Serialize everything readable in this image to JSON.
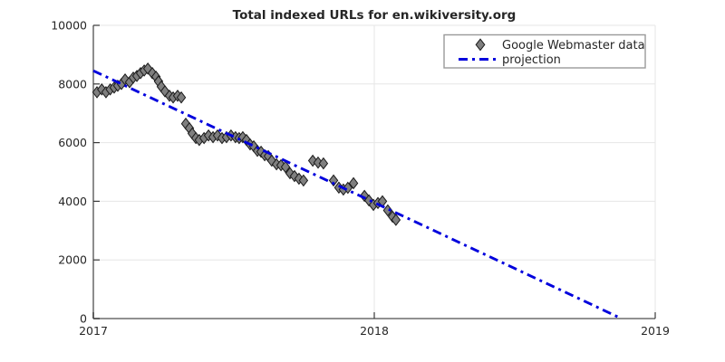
{
  "title": "Total indexed URLs for en.wikiversity.org",
  "legend": {
    "position": "top-right",
    "items": [
      {
        "label": "Google Webmaster data",
        "sample": "diamond-marker"
      },
      {
        "label": "projection",
        "sample": "dash-dot-line"
      }
    ]
  },
  "colors": {
    "marker_fill": "#7f7f7f",
    "marker_stroke": "#1a1a1a",
    "projection_line": "#0000dd",
    "axis": "#808080",
    "tick": "#3a3a3a",
    "grid": "#e6e6e6",
    "text": "#262626",
    "legend_border": "#9a9a9a",
    "background": "#ffffff"
  },
  "chart_data": {
    "type": "scatter",
    "title": "Total indexed URLs for en.wikiversity.org",
    "xlabel": "",
    "ylabel": "",
    "xlim": [
      2017,
      2019
    ],
    "ylim": [
      0,
      10000
    ],
    "x_ticks": [
      2017,
      2018,
      2019
    ],
    "y_ticks": [
      0,
      2000,
      4000,
      6000,
      8000,
      10000
    ],
    "grid": true,
    "legend_position": "top-right",
    "series": [
      {
        "name": "Google Webmaster data",
        "type": "scatter",
        "marker": "diamond",
        "color": "#7f7f7f",
        "points": [
          [
            2017.013,
            7720
          ],
          [
            2017.03,
            7815
          ],
          [
            2017.045,
            7720
          ],
          [
            2017.06,
            7815
          ],
          [
            2017.074,
            7875
          ],
          [
            2017.087,
            7940
          ],
          [
            2017.1,
            8000
          ],
          [
            2017.113,
            8155
          ],
          [
            2017.129,
            8060
          ],
          [
            2017.142,
            8215
          ],
          [
            2017.155,
            8275
          ],
          [
            2017.168,
            8370
          ],
          [
            2017.181,
            8460
          ],
          [
            2017.194,
            8525
          ],
          [
            2017.21,
            8370
          ],
          [
            2017.223,
            8245
          ],
          [
            2017.232,
            8090
          ],
          [
            2017.242,
            7910
          ],
          [
            2017.255,
            7750
          ],
          [
            2017.271,
            7600
          ],
          [
            2017.284,
            7540
          ],
          [
            2017.3,
            7600
          ],
          [
            2017.313,
            7540
          ],
          [
            2017.329,
            6645
          ],
          [
            2017.342,
            6490
          ],
          [
            2017.352,
            6310
          ],
          [
            2017.365,
            6155
          ],
          [
            2017.377,
            6090
          ],
          [
            2017.394,
            6155
          ],
          [
            2017.41,
            6245
          ],
          [
            2017.426,
            6185
          ],
          [
            2017.442,
            6245
          ],
          [
            2017.458,
            6155
          ],
          [
            2017.474,
            6185
          ],
          [
            2017.49,
            6245
          ],
          [
            2017.506,
            6185
          ],
          [
            2017.519,
            6155
          ],
          [
            2017.532,
            6185
          ],
          [
            2017.545,
            6090
          ],
          [
            2017.558,
            5940
          ],
          [
            2017.571,
            5875
          ],
          [
            2017.584,
            5720
          ],
          [
            2017.597,
            5690
          ],
          [
            2017.61,
            5570
          ],
          [
            2017.623,
            5540
          ],
          [
            2017.635,
            5385
          ],
          [
            2017.652,
            5260
          ],
          [
            2017.668,
            5230
          ],
          [
            2017.684,
            5170
          ],
          [
            2017.7,
            4955
          ],
          [
            2017.716,
            4860
          ],
          [
            2017.732,
            4770
          ],
          [
            2017.748,
            4710
          ],
          [
            2017.781,
            5385
          ],
          [
            2017.8,
            5320
          ],
          [
            2017.819,
            5290
          ],
          [
            2017.855,
            4710
          ],
          [
            2017.874,
            4465
          ],
          [
            2017.89,
            4400
          ],
          [
            2017.906,
            4460
          ],
          [
            2017.926,
            4615
          ],
          [
            2017.965,
            4185
          ],
          [
            2017.981,
            4030
          ],
          [
            2017.997,
            3875
          ],
          [
            2018.013,
            3940
          ],
          [
            2018.029,
            4000
          ],
          [
            2018.048,
            3690
          ],
          [
            2018.065,
            3475
          ],
          [
            2018.077,
            3365
          ]
        ]
      },
      {
        "name": "projection",
        "type": "line",
        "style": "dash-dot",
        "color": "#0000dd",
        "points": [
          [
            2017.0,
            8450
          ],
          [
            2018.88,
            0
          ]
        ]
      }
    ]
  }
}
